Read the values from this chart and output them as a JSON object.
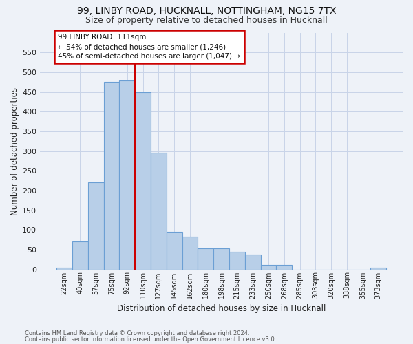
{
  "title1": "99, LINBY ROAD, HUCKNALL, NOTTINGHAM, NG15 7TX",
  "title2": "Size of property relative to detached houses in Hucknall",
  "xlabel": "Distribution of detached houses by size in Hucknall",
  "ylabel": "Number of detached properties",
  "footnote1": "Contains HM Land Registry data © Crown copyright and database right 2024.",
  "footnote2": "Contains public sector information licensed under the Open Government Licence v3.0.",
  "categories": [
    "22sqm",
    "40sqm",
    "57sqm",
    "75sqm",
    "92sqm",
    "110sqm",
    "127sqm",
    "145sqm",
    "162sqm",
    "180sqm",
    "198sqm",
    "215sqm",
    "233sqm",
    "250sqm",
    "268sqm",
    "285sqm",
    "303sqm",
    "320sqm",
    "338sqm",
    "355sqm",
    "373sqm"
  ],
  "values": [
    5,
    70,
    220,
    475,
    478,
    450,
    295,
    95,
    82,
    53,
    53,
    45,
    38,
    12,
    12,
    0,
    0,
    0,
    0,
    0,
    5
  ],
  "bar_color": "#b8cfe8",
  "bar_edge_color": "#6b9fd4",
  "red_line_x": 4.5,
  "annotation_title": "99 LINBY ROAD: 111sqm",
  "annotation_line1": "← 54% of detached houses are smaller (1,246)",
  "annotation_line2": "45% of semi-detached houses are larger (1,047) →",
  "annotation_box_edgecolor": "#cc0000",
  "ylim": [
    0,
    600
  ],
  "yticks": [
    0,
    50,
    100,
    150,
    200,
    250,
    300,
    350,
    400,
    450,
    500,
    550
  ],
  "grid_color": "#c8d4e8",
  "background_color": "#eef2f8"
}
